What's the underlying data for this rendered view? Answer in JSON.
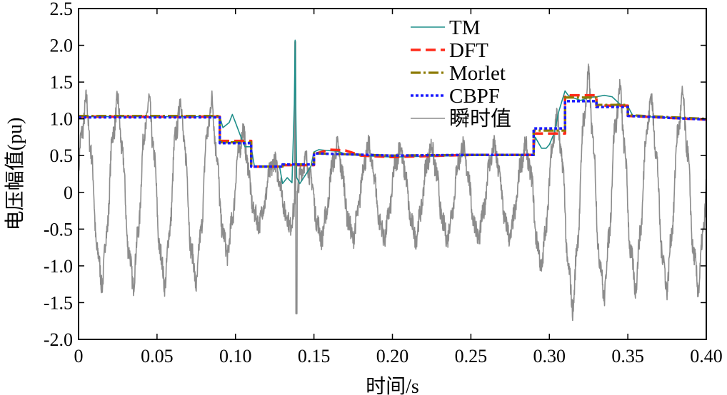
{
  "chart_data": {
    "type": "line",
    "title": "",
    "xlabel": "时间/s",
    "ylabel": "电压幅值(pu)",
    "xlim": [
      0,
      0.4
    ],
    "ylim": [
      -2.0,
      2.5
    ],
    "xticks": [
      0,
      0.05,
      0.1,
      0.15,
      0.2,
      0.25,
      0.3,
      0.35,
      0.4
    ],
    "xtick_labels": [
      "0",
      "0.05",
      "0.10",
      "0.15",
      "0.20",
      "0.25",
      "0.30",
      "0.35",
      "0.40"
    ],
    "yticks": [
      -2.0,
      -1.5,
      -1.0,
      -0.5,
      0,
      0.5,
      1.0,
      1.5,
      2.0,
      2.5
    ],
    "ytick_labels": [
      "-2.0",
      "-1.5",
      "-1.0",
      "-0.5",
      "0",
      "0.5",
      "1.0",
      "1.5",
      "2.0",
      "2.5"
    ],
    "grid": false,
    "legend_position": "top-center",
    "series": [
      {
        "name": "TM",
        "color": "#1f8f8a",
        "style": "solid",
        "x": [
          0,
          0.09,
          0.092,
          0.096,
          0.098,
          0.1,
          0.103,
          0.106,
          0.11,
          0.112,
          0.128,
          0.13,
          0.133,
          0.136,
          0.1375,
          0.138,
          0.1385,
          0.139,
          0.141,
          0.145,
          0.148,
          0.15,
          0.153,
          0.158,
          0.165,
          0.17,
          0.18,
          0.19,
          0.2,
          0.22,
          0.25,
          0.28,
          0.29,
          0.291,
          0.295,
          0.298,
          0.3,
          0.303,
          0.306,
          0.31,
          0.312,
          0.316,
          0.32,
          0.325,
          0.33,
          0.335,
          0.34,
          0.345,
          0.35,
          0.353,
          0.36,
          0.4
        ],
        "y": [
          1.03,
          1.03,
          0.88,
          0.95,
          1.06,
          0.95,
          0.78,
          0.62,
          0.62,
          0.36,
          0.36,
          0.12,
          0.2,
          0.13,
          1.2,
          2.07,
          1.0,
          0.2,
          0.12,
          0.25,
          0.35,
          0.55,
          0.58,
          0.57,
          0.56,
          0.52,
          0.5,
          0.49,
          0.48,
          0.49,
          0.5,
          0.5,
          0.5,
          0.75,
          0.6,
          0.6,
          0.65,
          0.8,
          1.1,
          1.38,
          1.32,
          1.28,
          1.25,
          1.29,
          1.3,
          1.32,
          1.3,
          1.2,
          1.17,
          1.05,
          1.03,
          1.0
        ]
      },
      {
        "name": "DFT",
        "color": "#ff2a1a",
        "style": "dashed",
        "x": [
          0,
          0.09,
          0.09,
          0.11,
          0.11,
          0.13,
          0.13,
          0.15,
          0.15,
          0.16,
          0.17,
          0.18,
          0.2,
          0.25,
          0.29,
          0.29,
          0.3,
          0.31,
          0.31,
          0.33,
          0.33,
          0.35,
          0.35,
          0.4
        ],
        "y": [
          1.03,
          1.03,
          0.7,
          0.7,
          0.35,
          0.35,
          0.37,
          0.37,
          0.52,
          0.58,
          0.57,
          0.5,
          0.48,
          0.51,
          0.51,
          0.8,
          0.8,
          0.8,
          1.32,
          1.32,
          1.18,
          1.18,
          1.04,
          0.99
        ]
      },
      {
        "name": "Morlet",
        "color": "#8c7a00",
        "style": "dashdot",
        "x": [
          0,
          0.09,
          0.09,
          0.11,
          0.11,
          0.13,
          0.13,
          0.15,
          0.15,
          0.2,
          0.25,
          0.29,
          0.29,
          0.31,
          0.31,
          0.33,
          0.33,
          0.35,
          0.35,
          0.4
        ],
        "y": [
          1.04,
          1.04,
          0.68,
          0.68,
          0.35,
          0.35,
          0.38,
          0.38,
          0.53,
          0.5,
          0.51,
          0.51,
          0.84,
          0.84,
          1.29,
          1.29,
          1.19,
          1.19,
          1.05,
          1.0
        ]
      },
      {
        "name": "CBPF",
        "color": "#1a1aff",
        "style": "dotted",
        "x": [
          0,
          0.09,
          0.09,
          0.11,
          0.11,
          0.13,
          0.13,
          0.15,
          0.15,
          0.2,
          0.25,
          0.29,
          0.29,
          0.31,
          0.31,
          0.33,
          0.33,
          0.35,
          0.35,
          0.4
        ],
        "y": [
          1.02,
          1.02,
          0.67,
          0.67,
          0.35,
          0.35,
          0.38,
          0.38,
          0.53,
          0.5,
          0.51,
          0.51,
          0.87,
          0.87,
          1.24,
          1.24,
          1.16,
          1.16,
          1.04,
          0.99
        ]
      },
      {
        "name": "瞬时值",
        "color": "#8c8c8c",
        "style": "solid",
        "generated": "noisy sinusoid, 50 Hz, amplitude follows RMS envelope; spike near 0.1385 s",
        "frequency_hz": 50,
        "envelope": [
          {
            "from": 0,
            "to": 0.09,
            "amp": 1.15
          },
          {
            "from": 0.09,
            "to": 0.11,
            "amp": 0.78
          },
          {
            "from": 0.11,
            "to": 0.13,
            "amp": 0.4
          },
          {
            "from": 0.13,
            "to": 0.15,
            "amp": 0.42
          },
          {
            "from": 0.15,
            "to": 0.29,
            "amp": 0.58
          },
          {
            "from": 0.29,
            "to": 0.31,
            "amp": 0.95
          },
          {
            "from": 0.31,
            "to": 0.33,
            "amp": 1.45
          },
          {
            "from": 0.33,
            "to": 0.35,
            "amp": 1.3
          },
          {
            "from": 0.35,
            "to": 0.4,
            "amp": 1.2
          }
        ],
        "spike": {
          "x": 0.1385,
          "ymax": 2.05,
          "ymin": -1.65
        }
      }
    ]
  }
}
